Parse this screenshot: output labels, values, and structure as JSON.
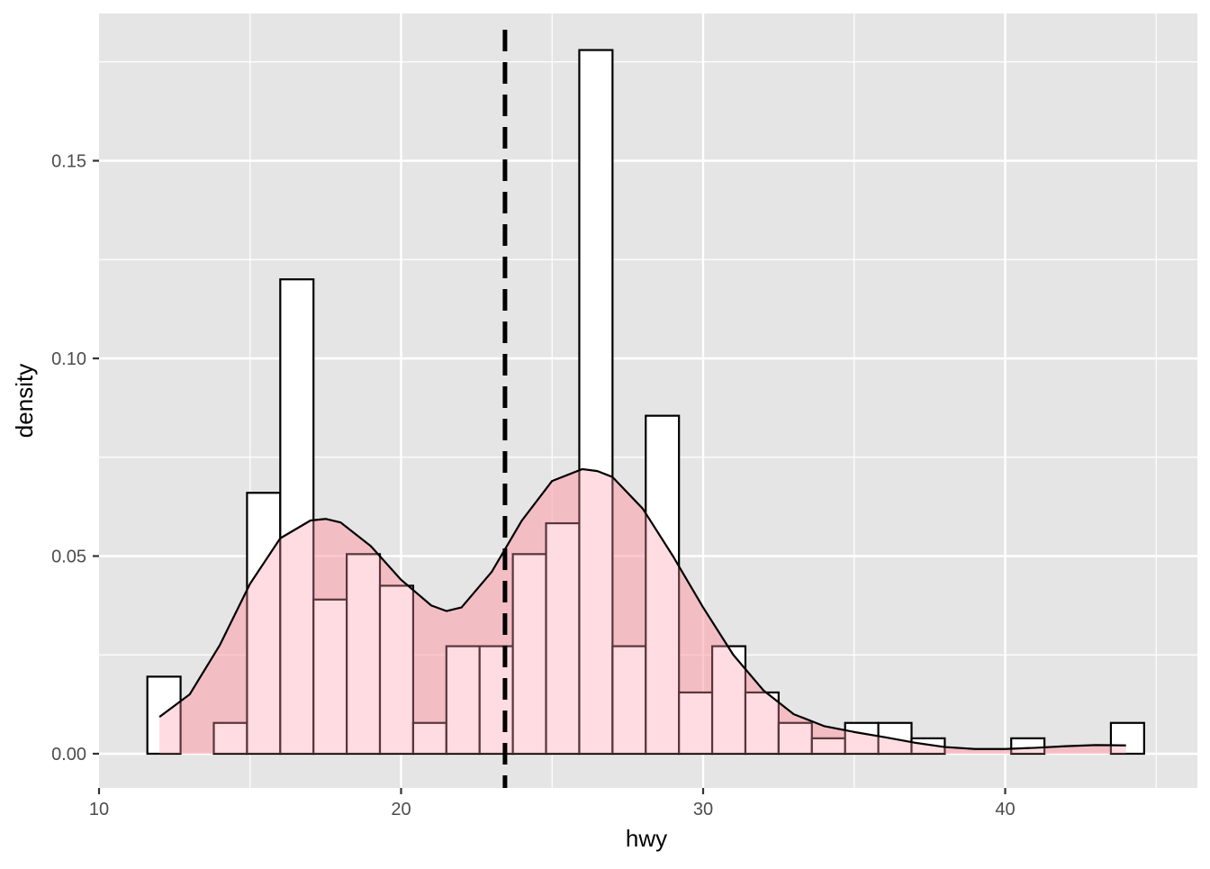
{
  "chart_data": {
    "type": "histogram",
    "xlabel": "hwy",
    "ylabel": "density",
    "xlim": [
      10,
      46
    ],
    "ylim": [
      -0.008,
      0.187
    ],
    "x_ticks": [
      10,
      20,
      30,
      40
    ],
    "y_ticks": [
      0.0,
      0.05,
      0.1,
      0.15
    ],
    "x_tick_labels": [
      "10",
      "20",
      "30",
      "40"
    ],
    "y_tick_labels": [
      "0.00",
      "0.05",
      "0.10",
      "0.15"
    ],
    "grid": true,
    "colors": {
      "panel_background": "#e5e5e5",
      "grid": "#ffffff",
      "bar_fill": "#ffffff",
      "bar_stroke": "#000000",
      "density_fill": "#ff9aaa",
      "density_line": "#000000",
      "reference_line": "#000000"
    },
    "histogram": {
      "bin_width": 1.1,
      "bins": [
        {
          "x0": 11.6,
          "x1": 12.7,
          "density": 0.0195
        },
        {
          "x0": 12.7,
          "x1": 13.8,
          "density": 0.0
        },
        {
          "x0": 13.8,
          "x1": 14.9,
          "density": 0.0078
        },
        {
          "x0": 14.9,
          "x1": 16.0,
          "density": 0.066
        },
        {
          "x0": 16.0,
          "x1": 17.1,
          "density": 0.12
        },
        {
          "x0": 17.1,
          "x1": 18.2,
          "density": 0.039
        },
        {
          "x0": 18.2,
          "x1": 19.3,
          "density": 0.0505
        },
        {
          "x0": 19.3,
          "x1": 20.4,
          "density": 0.0425
        },
        {
          "x0": 20.4,
          "x1": 21.5,
          "density": 0.0078
        },
        {
          "x0": 21.5,
          "x1": 22.6,
          "density": 0.0272
        },
        {
          "x0": 22.6,
          "x1": 23.7,
          "density": 0.0272
        },
        {
          "x0": 23.7,
          "x1": 24.8,
          "density": 0.0505
        },
        {
          "x0": 24.8,
          "x1": 25.9,
          "density": 0.0583
        },
        {
          "x0": 25.9,
          "x1": 27.0,
          "density": 0.178
        },
        {
          "x0": 27.0,
          "x1": 28.1,
          "density": 0.0272
        },
        {
          "x0": 28.1,
          "x1": 29.2,
          "density": 0.0855
        },
        {
          "x0": 29.2,
          "x1": 30.3,
          "density": 0.0155
        },
        {
          "x0": 30.3,
          "x1": 31.4,
          "density": 0.0272
        },
        {
          "x0": 31.4,
          "x1": 32.5,
          "density": 0.0155
        },
        {
          "x0": 32.5,
          "x1": 33.6,
          "density": 0.0078
        },
        {
          "x0": 33.6,
          "x1": 34.7,
          "density": 0.0039
        },
        {
          "x0": 34.7,
          "x1": 35.8,
          "density": 0.0078
        },
        {
          "x0": 35.8,
          "x1": 36.9,
          "density": 0.0078
        },
        {
          "x0": 36.9,
          "x1": 38.0,
          "density": 0.0039
        },
        {
          "x0": 38.0,
          "x1": 39.1,
          "density": 0.0
        },
        {
          "x0": 39.1,
          "x1": 40.2,
          "density": 0.0
        },
        {
          "x0": 40.2,
          "x1": 41.3,
          "density": 0.0039
        },
        {
          "x0": 41.3,
          "x1": 42.4,
          "density": 0.0
        },
        {
          "x0": 42.4,
          "x1": 43.5,
          "density": 0.0
        },
        {
          "x0": 43.5,
          "x1": 44.6,
          "density": 0.0078
        }
      ]
    },
    "density_curve": {
      "x": [
        12.0,
        13.0,
        14.0,
        15.0,
        16.0,
        17.0,
        17.5,
        18.0,
        19.0,
        20.0,
        21.0,
        21.5,
        22.0,
        23.0,
        24.0,
        25.0,
        26.0,
        26.5,
        27.0,
        28.0,
        29.0,
        30.0,
        31.0,
        32.0,
        33.0,
        34.0,
        35.0,
        36.0,
        37.0,
        38.0,
        39.0,
        40.0,
        41.0,
        42.0,
        43.0,
        44.0
      ],
      "y": [
        0.0093,
        0.015,
        0.0275,
        0.043,
        0.0545,
        0.059,
        0.0594,
        0.0585,
        0.0525,
        0.044,
        0.0375,
        0.0361,
        0.037,
        0.046,
        0.059,
        0.069,
        0.072,
        0.0715,
        0.07,
        0.062,
        0.05,
        0.037,
        0.025,
        0.016,
        0.01,
        0.007,
        0.0055,
        0.0042,
        0.0028,
        0.0017,
        0.0012,
        0.0012,
        0.0015,
        0.0019,
        0.0022,
        0.0021
      ]
    },
    "reference_line": {
      "x": 23.44,
      "style": "dashed"
    }
  }
}
